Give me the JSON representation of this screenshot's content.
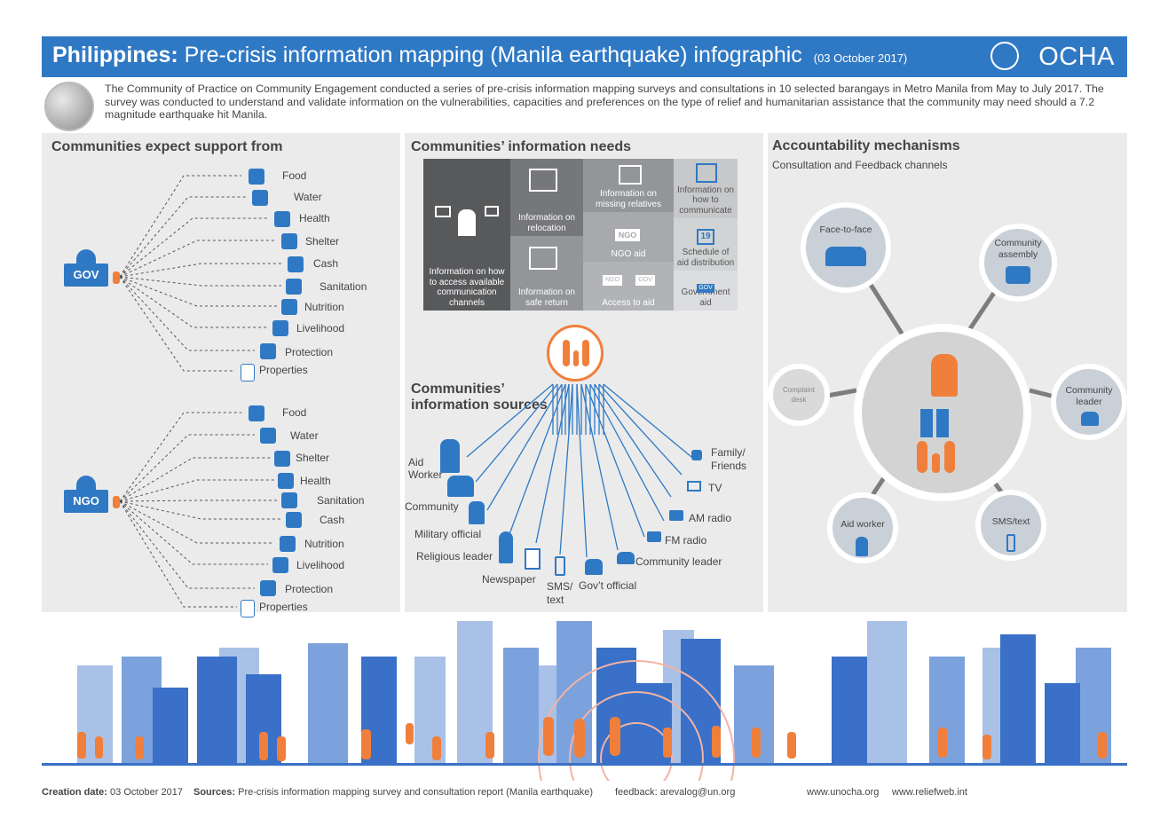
{
  "header": {
    "title_country": "Philippines:",
    "title_rest": "Pre-crisis information mapping (Manila earthquake) infographic",
    "date": "(03 October 2017)",
    "org": "OCHA"
  },
  "intro": "The Community of Practice on Community Engagement conducted a series of pre-crisis information mapping surveys and consultations in 10 selected barangays in Metro Manila from May to July 2017.  The survey was conducted to understand and validate information on the vulnerabilities, capacities and preferences on the type of relief and humanitarian assistance that the community may need should a 7.2 magnitude earthquake hit Manila.",
  "support": {
    "title": "Communities expect support from",
    "gov": {
      "label": "GOV",
      "items": [
        "Food",
        "Water",
        "Health",
        "Shelter",
        "Cash",
        "Sanitation",
        "Nutrition",
        "Livelihood",
        "Protection",
        "Properties"
      ]
    },
    "ngo": {
      "label": "NGO",
      "items": [
        "Food",
        "Water",
        "Shelter",
        "Health",
        "Sanitation",
        "Cash",
        "Nutrition",
        "Livelihood",
        "Protection",
        "Properties"
      ]
    }
  },
  "needs": {
    "title": "Communities’ information needs",
    "tiles": [
      "Information on how to access available communication channels",
      "Information on relocation",
      "Information on safe return",
      "Information on missing relatives",
      "NGO aid",
      "Access to aid",
      "Information on how to communicate",
      "Schedule of aid distribution",
      "Government aid"
    ],
    "tile_icon_texts": {
      "ngo": "NGO",
      "ngo_small": "NGO",
      "gov_small": "GOV",
      "calendar": "19",
      "gov": "GOV"
    }
  },
  "sources": {
    "title_line1": "Communities’",
    "title_line2": "information sources",
    "left": [
      "Aid Worker",
      "Community",
      "Military official",
      "Religious leader",
      "Newspaper"
    ],
    "bottom": [
      "SMS/ text",
      "Gov’t official"
    ],
    "right": [
      "Family/ Friends",
      "TV",
      "AM radio",
      "FM radio",
      "Community leader"
    ]
  },
  "accountability": {
    "title": "Accountability mechanisms",
    "subtitle": "Consultation and Feedback channels",
    "channels": [
      "Face-to-face",
      "Community assembly",
      "Complaint desk",
      "Community leader",
      "Aid worker",
      "SMS/text"
    ]
  },
  "footer": {
    "creation_label": "Creation date:",
    "creation_value": "03 October 2017",
    "sources_label": "Sources:",
    "sources_value": "Pre-crisis information mapping survey and consultation report (Manila earthquake)",
    "feedback": "feedback: arevalog@un.org",
    "site1": "www.unocha.org",
    "site2": "www.reliefweb.int"
  },
  "colors": {
    "blue": "#2f79c4",
    "orange": "#f07f3c",
    "panel": "#ebebeb",
    "dark_tile": "#58595b"
  }
}
